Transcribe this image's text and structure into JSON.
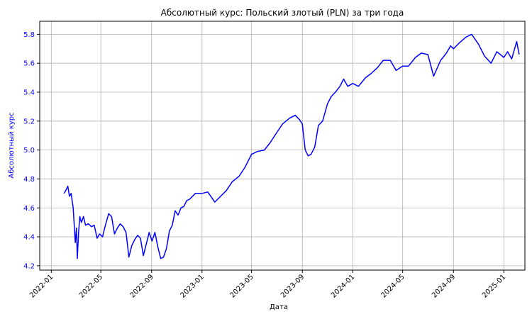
{
  "chart_data": {
    "type": "line",
    "title": "Абсолютный курс: Польский злотый (PLN) за три года",
    "xlabel": "Дата",
    "ylabel": "Абсолютный курс",
    "grid": true,
    "colors": {
      "line": "#0000ff",
      "ylabel": "#0000ff",
      "ytick": "#0000ff",
      "grid": "#b0b0b0"
    },
    "xlim": [
      "2021-12-04",
      "2025-02-21"
    ],
    "ylim": [
      4.17,
      5.89
    ],
    "xticks": [
      "2022-01",
      "2022-05",
      "2022-09",
      "2023-01",
      "2023-05",
      "2023-09",
      "2024-01",
      "2024-05",
      "2024-09",
      "2025-01"
    ],
    "yticks": [
      "4.2",
      "4.4",
      "4.6",
      "4.8",
      "5.0",
      "5.2",
      "5.4",
      "5.6",
      "5.8"
    ],
    "series": [
      {
        "x": [
          "2022-02-01",
          "2022-02-05",
          "2022-02-10",
          "2022-02-14",
          "2022-02-18",
          "2022-02-23",
          "2022-02-28",
          "2022-03-03",
          "2022-03-05",
          "2022-03-08",
          "2022-03-11",
          "2022-03-15",
          "2022-03-20",
          "2022-03-25",
          "2022-04-01",
          "2022-04-08",
          "2022-04-15",
          "2022-04-22",
          "2022-04-28",
          "2022-05-05",
          "2022-05-12",
          "2022-05-20",
          "2022-05-27",
          "2022-06-03",
          "2022-06-10",
          "2022-06-17",
          "2022-06-24",
          "2022-07-01",
          "2022-07-08",
          "2022-07-15",
          "2022-07-22",
          "2022-07-29",
          "2022-08-05",
          "2022-08-12",
          "2022-08-19",
          "2022-08-26",
          "2022-09-02",
          "2022-09-09",
          "2022-09-16",
          "2022-09-23",
          "2022-09-30",
          "2022-10-07",
          "2022-10-14",
          "2022-10-21",
          "2022-10-28",
          "2022-11-04",
          "2022-11-11",
          "2022-11-18",
          "2022-11-25",
          "2022-12-02",
          "2022-12-16",
          "2023-01-01",
          "2023-01-15",
          "2023-02-01",
          "2023-02-15",
          "2023-03-01",
          "2023-03-15",
          "2023-04-01",
          "2023-04-15",
          "2023-05-01",
          "2023-05-15",
          "2023-06-01",
          "2023-06-15",
          "2023-07-01",
          "2023-07-15",
          "2023-08-01",
          "2023-08-15",
          "2023-08-25",
          "2023-09-01",
          "2023-09-08",
          "2023-09-15",
          "2023-09-22",
          "2023-10-01",
          "2023-10-10",
          "2023-10-20",
          "2023-11-01",
          "2023-11-10",
          "2023-11-20",
          "2023-12-01",
          "2023-12-10",
          "2023-12-20",
          "2024-01-01",
          "2024-01-15",
          "2024-02-01",
          "2024-02-15",
          "2024-03-01",
          "2024-03-15",
          "2024-04-01",
          "2024-04-15",
          "2024-05-01",
          "2024-05-15",
          "2024-06-01",
          "2024-06-15",
          "2024-07-01",
          "2024-07-15",
          "2024-08-01",
          "2024-08-15",
          "2024-08-25",
          "2024-09-01",
          "2024-09-15",
          "2024-10-01",
          "2024-10-15",
          "2024-11-01",
          "2024-11-15",
          "2024-12-01",
          "2024-12-15",
          "2025-01-01",
          "2025-01-10",
          "2025-01-20",
          "2025-02-01",
          "2025-02-07"
        ],
        "y": [
          4.7,
          4.72,
          4.75,
          4.68,
          4.7,
          4.6,
          4.36,
          4.46,
          4.25,
          4.42,
          4.54,
          4.5,
          4.54,
          4.48,
          4.49,
          4.47,
          4.48,
          4.39,
          4.42,
          4.4,
          4.48,
          4.56,
          4.54,
          4.42,
          4.46,
          4.49,
          4.47,
          4.43,
          4.26,
          4.34,
          4.38,
          4.41,
          4.39,
          4.27,
          4.35,
          4.43,
          4.37,
          4.43,
          4.33,
          4.25,
          4.26,
          4.32,
          4.44,
          4.48,
          4.58,
          4.55,
          4.6,
          4.61,
          4.65,
          4.66,
          4.7,
          4.7,
          4.71,
          4.64,
          4.68,
          4.72,
          4.78,
          4.82,
          4.88,
          4.97,
          4.99,
          5.0,
          5.05,
          5.12,
          5.18,
          5.22,
          5.24,
          5.21,
          5.18,
          5.0,
          4.96,
          4.97,
          5.02,
          5.17,
          5.2,
          5.32,
          5.37,
          5.4,
          5.44,
          5.49,
          5.44,
          5.46,
          5.44,
          5.5,
          5.53,
          5.57,
          5.62,
          5.62,
          5.55,
          5.58,
          5.58,
          5.64,
          5.67,
          5.66,
          5.51,
          5.62,
          5.67,
          5.72,
          5.7,
          5.74,
          5.78,
          5.8,
          5.73,
          5.65,
          5.6,
          5.68,
          5.64,
          5.68,
          5.63,
          5.75,
          5.66
        ]
      }
    ]
  }
}
